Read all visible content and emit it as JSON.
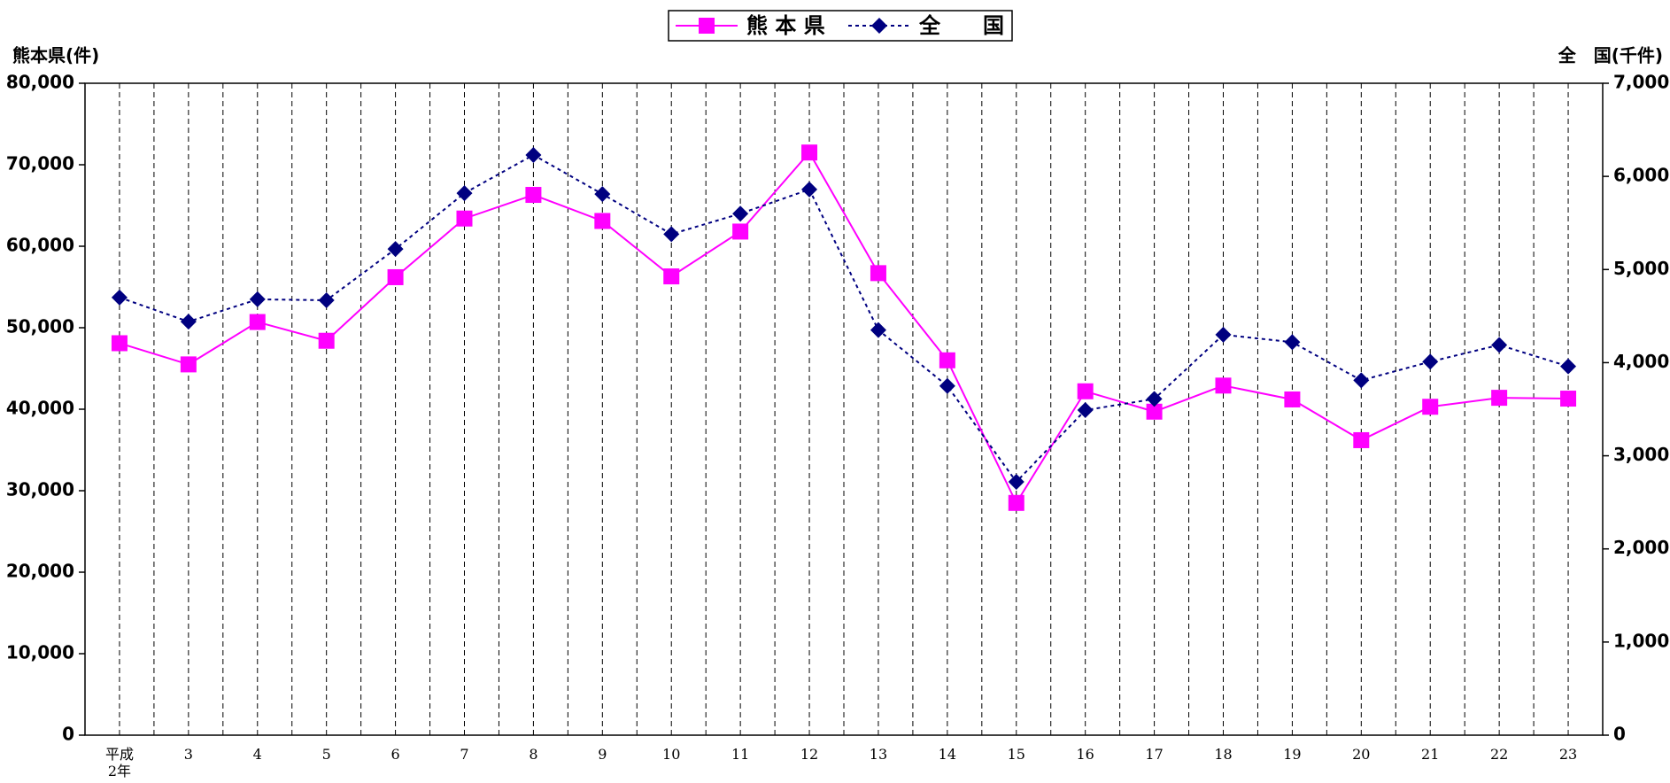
{
  "chart_data": {
    "type": "line",
    "ylabel": "熊本県(件)",
    "y2label": "全　国(千件)",
    "categories": [
      "平成\n2年",
      "3",
      "4",
      "5",
      "6",
      "7",
      "8",
      "9",
      "10",
      "11",
      "12",
      "13",
      "14",
      "15",
      "16",
      "17",
      "18",
      "19",
      "20",
      "21",
      "22",
      "23"
    ],
    "series": [
      {
        "name": "熊 本 県",
        "color": "#ff00ff",
        "marker": "square",
        "dash": "solid",
        "axis": "y",
        "values": [
          48100,
          45500,
          50700,
          48400,
          56200,
          63400,
          66300,
          63100,
          56300,
          61800,
          71500,
          56700,
          46000,
          28500,
          42200,
          39700,
          42900,
          41200,
          36200,
          40300,
          41400,
          41300
        ]
      },
      {
        "name": "全　　国",
        "color": "#000080",
        "marker": "diamond",
        "dash": "dotted",
        "axis": "y2",
        "values": [
          4700,
          4440,
          4680,
          4670,
          5220,
          5820,
          6230,
          5810,
          5380,
          5600,
          5860,
          4350,
          3750,
          2720,
          3490,
          3610,
          4300,
          4220,
          3810,
          4010,
          4190,
          3960
        ]
      }
    ],
    "ylim": [
      0,
      80000
    ],
    "yticks": [
      0,
      {
        "value": 10000,
        "label": "10,000"
      },
      {
        "value": 20000,
        "label": "20,000"
      },
      {
        "value": 30000,
        "label": "30,000"
      },
      {
        "value": 40000,
        "label": "40,000"
      },
      {
        "value": 50000,
        "label": "50,000"
      },
      {
        "value": 60000,
        "label": "60,000"
      },
      {
        "value": 70000,
        "label": "70,000"
      },
      {
        "value": 80000,
        "label": "80,000"
      }
    ],
    "y2lim": [
      0,
      7000
    ],
    "y2ticks": [
      0,
      {
        "value": 1000,
        "label": "1,000"
      },
      {
        "value": 2000,
        "label": "2,000"
      },
      {
        "value": 3000,
        "label": "3,000"
      },
      {
        "value": 4000,
        "label": "4,000"
      },
      {
        "value": 5000,
        "label": "5,000"
      },
      {
        "value": 6000,
        "label": "6,000"
      },
      {
        "value": 7000,
        "label": "7,000"
      }
    ],
    "legend": "top",
    "grid": "vertical-dashed"
  }
}
